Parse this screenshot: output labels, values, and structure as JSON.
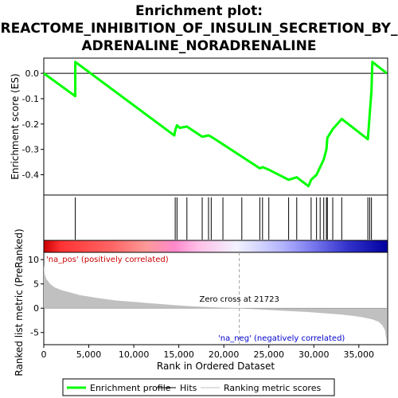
{
  "title_lines": [
    "Enrichment plot:",
    "REACTOME_INHIBITION_OF_INSULIN_SECRETION_BY_",
    "ADRENALINE_NORADRENALINE"
  ],
  "colors": {
    "profile": "#00ff00",
    "hits": "#000000",
    "metric": "#c0c0c0",
    "pos_label": "#cc0000",
    "neg_label": "#0000cc",
    "zero_cross_line": "#a0a0a0"
  },
  "chart_data": [
    {
      "type": "line",
      "name": "enrichment-profile",
      "ylabel": "Enrichment score (ES)",
      "xlim": [
        0,
        38200
      ],
      "ylim": [
        -0.48,
        0.06
      ],
      "yticks": [
        0.0,
        -0.1,
        -0.2,
        -0.3,
        -0.4
      ],
      "ytick_labels": [
        "0.0",
        "-0.1",
        "-0.2",
        "-0.3",
        "-0.4"
      ],
      "zero_line": true,
      "x": [
        0,
        3500,
        3500,
        14500,
        14600,
        14800,
        15100,
        15900,
        17600,
        18300,
        18600,
        19900,
        24000,
        24300,
        25000,
        27200,
        28100,
        29400,
        29700,
        30300,
        30700,
        31100,
        31400,
        31500,
        32100,
        33100,
        36000,
        36200,
        36400,
        36500,
        38100
      ],
      "y": [
        0.0,
        -0.09,
        0.045,
        -0.245,
        -0.225,
        -0.205,
        -0.215,
        -0.21,
        -0.25,
        -0.245,
        -0.25,
        -0.28,
        -0.375,
        -0.37,
        -0.38,
        -0.42,
        -0.41,
        -0.445,
        -0.42,
        -0.4,
        -0.37,
        -0.34,
        -0.3,
        -0.255,
        -0.22,
        -0.18,
        -0.26,
        -0.165,
        -0.07,
        0.045,
        0.0
      ]
    },
    {
      "type": "hits",
      "name": "gene-hits",
      "x": [
        3500,
        14600,
        14800,
        15900,
        17600,
        18300,
        18600,
        19900,
        22000,
        24000,
        24300,
        25000,
        27200,
        28100,
        29700,
        30300,
        30700,
        31100,
        31400,
        31500,
        32100,
        33100,
        36000,
        36200,
        36400
      ]
    },
    {
      "type": "area",
      "name": "ranked-list-metric",
      "ylabel": "Ranked list metric (PreRanked)",
      "xlabel": "Rank in Ordered Dataset",
      "xlim": [
        0,
        38200
      ],
      "ylim": [
        -7.5,
        11.5
      ],
      "xticks": [
        0,
        5000,
        10000,
        15000,
        20000,
        25000,
        30000,
        35000
      ],
      "xtick_labels": [
        "0",
        "5,000",
        "10,000",
        "15,000",
        "20,000",
        "25,000",
        "30,000",
        "35,000"
      ],
      "yticks": [
        10,
        5,
        0,
        -5
      ],
      "ytick_labels": [
        "10",
        "5",
        "0",
        "-5"
      ],
      "x": [
        0,
        100,
        300,
        700,
        1200,
        2000,
        3000,
        4000,
        6000,
        8000,
        10000,
        12000,
        14000,
        16000,
        18000,
        20000,
        21723,
        23000,
        25000,
        27000,
        29000,
        31000,
        33000,
        34500,
        35500,
        36500,
        37200,
        37600,
        37900,
        38000,
        38100
      ],
      "y": [
        9.0,
        7.0,
        6.0,
        5.0,
        4.3,
        3.7,
        3.2,
        2.7,
        2.1,
        1.6,
        1.3,
        1.0,
        0.7,
        0.45,
        0.25,
        0.1,
        0.0,
        -0.15,
        -0.35,
        -0.55,
        -0.75,
        -1.0,
        -1.3,
        -1.6,
        -1.9,
        -2.3,
        -2.8,
        -3.5,
        -4.5,
        -5.8,
        -6.8
      ],
      "annotations": {
        "pos_label": "'na_pos' (positively correlated)",
        "neg_label": "'na_neg' (negatively correlated)",
        "zero_cross_text": "Zero cross at 21723",
        "zero_cross_x": 21723
      }
    }
  ],
  "legend": {
    "position": "bottom",
    "items": [
      {
        "label": "Enrichment profile",
        "color": "#00ff00",
        "style": "line-thick"
      },
      {
        "label": "Hits",
        "color": "#000000",
        "style": "line"
      },
      {
        "label": "Ranking metric scores",
        "color": "#c0c0c0",
        "style": "line"
      }
    ]
  }
}
